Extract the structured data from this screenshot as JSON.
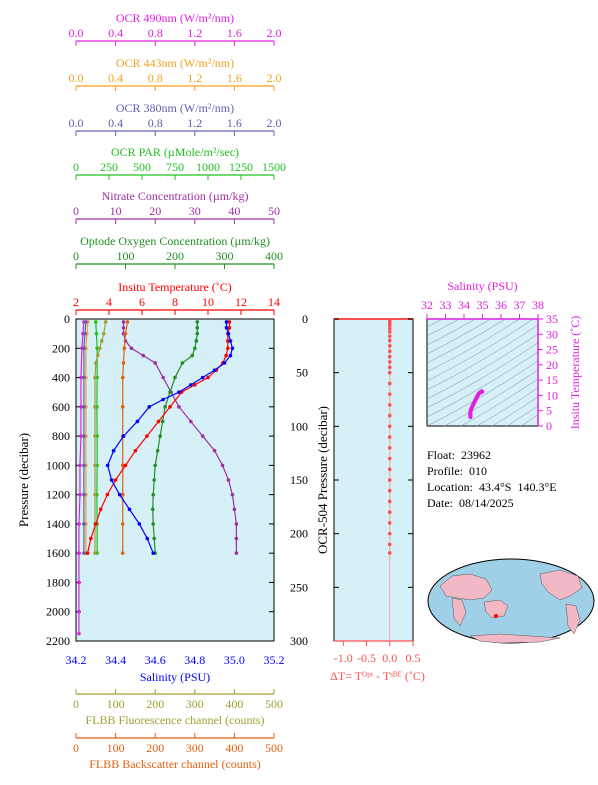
{
  "info": {
    "float": "Float:  23962",
    "profile": "Profile:  010",
    "location": "Location:  43.4°S  140.3°E",
    "date": "Date:  08/14/2025"
  },
  "colors": {
    "ocr490": "#e020e0",
    "ocr443": "#f0a020",
    "ocr380": "#6060b0",
    "par": "#20c020",
    "nitrate": "#a030a0",
    "oxygen": "#209020",
    "temperature": "#ff0000",
    "salinity": "#0000ff",
    "fluorescence": "#a0a030",
    "backscatter": "#e06010",
    "panel": "#d6f0f8",
    "deltat": "#ff5050"
  },
  "chart_data": [
    {
      "type": "line",
      "panel": "main-profile",
      "y_axis": {
        "label": "Pressure (decibar)",
        "range": [
          2200,
          0
        ],
        "ticks": [
          0,
          200,
          400,
          600,
          800,
          1000,
          1200,
          1400,
          1600,
          1800,
          2000,
          2200
        ]
      },
      "top_axes": [
        {
          "key": "ocr490",
          "label": "OCR 490nm (W/m²/nm)",
          "range": [
            0,
            2
          ],
          "ticks": [
            "0.0",
            "0.4",
            "0.8",
            "1.2",
            "1.6",
            "2.0"
          ]
        },
        {
          "key": "ocr443",
          "label": "OCR 443nm (W/m²/nm)",
          "range": [
            0,
            2
          ],
          "ticks": [
            "0.0",
            "0.4",
            "0.8",
            "1.2",
            "1.6",
            "2.0"
          ]
        },
        {
          "key": "ocr380",
          "label": "OCR 380nm (W/m²/nm)",
          "range": [
            0,
            2
          ],
          "ticks": [
            "0.0",
            "0.4",
            "0.8",
            "1.2",
            "1.6",
            "2.0"
          ]
        },
        {
          "key": "par",
          "label": "OCR PAR (µMole/m²/sec)",
          "range": [
            0,
            1500
          ],
          "ticks": [
            "0",
            "250",
            "500",
            "750",
            "1000",
            "1250",
            "1500"
          ]
        },
        {
          "key": "nitrate",
          "label": "Nitrate Concentration (µm/kg)",
          "range": [
            0,
            50
          ],
          "ticks": [
            "0",
            "10",
            "20",
            "30",
            "40",
            "50"
          ]
        },
        {
          "key": "oxygen",
          "label": "Optode Oxygen Concentration (µm/kg)",
          "range": [
            0,
            400
          ],
          "ticks": [
            "0",
            "100",
            "200",
            "300",
            "400"
          ]
        },
        {
          "key": "temperature",
          "label": "Insitu Temperature (˚C)",
          "range": [
            2,
            14
          ],
          "ticks": [
            "2",
            "4",
            "6",
            "8",
            "10",
            "12",
            "14"
          ]
        }
      ],
      "bottom_axes": [
        {
          "key": "salinity",
          "label": "Salinity (PSU)",
          "range": [
            34.2,
            35.2
          ],
          "ticks": [
            "34.2",
            "34.4",
            "34.6",
            "34.8",
            "35.0",
            "35.2"
          ]
        },
        {
          "key": "fluorescence",
          "label": "FLBB Fluorescence channel (counts)",
          "range": [
            0,
            500
          ],
          "ticks": [
            "0",
            "100",
            "200",
            "300",
            "400",
            "500"
          ]
        },
        {
          "key": "backscatter",
          "label": "FLBB Backscatter channel (counts)",
          "range": [
            0,
            500
          ],
          "ticks": [
            "0",
            "100",
            "200",
            "300",
            "400",
            "500"
          ]
        }
      ],
      "series": [
        {
          "name": "Insitu Temperature",
          "key": "temperature",
          "axis": "temperature",
          "points": [
            [
              11.3,
              20
            ],
            [
              11.3,
              60
            ],
            [
              11.2,
              100
            ],
            [
              11.2,
              150
            ],
            [
              11.2,
              200
            ],
            [
              11.1,
              250
            ],
            [
              10.9,
              300
            ],
            [
              10.5,
              350
            ],
            [
              10,
              400
            ],
            [
              9.2,
              450
            ],
            [
              8.4,
              500
            ],
            [
              7.7,
              600
            ],
            [
              7,
              700
            ],
            [
              6.3,
              800
            ],
            [
              5.6,
              900
            ],
            [
              5,
              1000
            ],
            [
              4.4,
              1100
            ],
            [
              3.9,
              1200
            ],
            [
              3.5,
              1300
            ],
            [
              3.2,
              1400
            ],
            [
              2.9,
              1500
            ],
            [
              2.7,
              1600
            ]
          ]
        },
        {
          "name": "Salinity",
          "key": "salinity",
          "axis": "salinity",
          "points": [
            [
              34.96,
              20
            ],
            [
              34.96,
              60
            ],
            [
              34.97,
              100
            ],
            [
              34.98,
              150
            ],
            [
              34.99,
              200
            ],
            [
              34.98,
              250
            ],
            [
              34.95,
              300
            ],
            [
              34.9,
              350
            ],
            [
              34.84,
              400
            ],
            [
              34.78,
              450
            ],
            [
              34.72,
              500
            ],
            [
              34.64,
              550
            ],
            [
              34.57,
              600
            ],
            [
              34.51,
              700
            ],
            [
              34.44,
              800
            ],
            [
              34.39,
              900
            ],
            [
              34.36,
              1000
            ],
            [
              34.38,
              1100
            ],
            [
              34.42,
              1200
            ],
            [
              34.47,
              1300
            ],
            [
              34.52,
              1400
            ],
            [
              34.56,
              1500
            ],
            [
              34.59,
              1600
            ]
          ]
        },
        {
          "name": "Optode Oxygen Concentration",
          "key": "oxygen",
          "axis": "oxygen",
          "points": [
            [
              245,
              20
            ],
            [
              245,
              60
            ],
            [
              245,
              100
            ],
            [
              243,
              150
            ],
            [
              240,
              200
            ],
            [
              235,
              250
            ],
            [
              215,
              300
            ],
            [
              200,
              400
            ],
            [
              190,
              500
            ],
            [
              180,
              600
            ],
            [
              175,
              700
            ],
            [
              170,
              800
            ],
            [
              165,
              900
            ],
            [
              160,
              1000
            ],
            [
              158,
              1100
            ],
            [
              156,
              1200
            ],
            [
              155,
              1300
            ],
            [
              156,
              1400
            ],
            [
              158,
              1500
            ],
            [
              160,
              1600
            ]
          ]
        },
        {
          "name": "Nitrate Concentration",
          "key": "nitrate",
          "axis": "nitrate",
          "points": [
            [
              12,
              20
            ],
            [
              12,
              60
            ],
            [
              12,
              100
            ],
            [
              12.5,
              150
            ],
            [
              14,
              200
            ],
            [
              17,
              250
            ],
            [
              20,
              300
            ],
            [
              22,
              400
            ],
            [
              24,
              500
            ],
            [
              26,
              600
            ],
            [
              29,
              700
            ],
            [
              32,
              800
            ],
            [
              35,
              900
            ],
            [
              37,
              1000
            ],
            [
              38.5,
              1100
            ],
            [
              39.5,
              1200
            ],
            [
              40,
              1300
            ],
            [
              40.5,
              1400
            ],
            [
              40.5,
              1500
            ],
            [
              40.5,
              1600
            ]
          ]
        },
        {
          "name": "OCR PAR",
          "key": "par",
          "axis": "par",
          "points": [
            [
              150,
              20
            ],
            [
              155,
              100
            ],
            [
              160,
              200
            ],
            [
              160,
              400
            ],
            [
              158,
              600
            ],
            [
              160,
              800
            ],
            [
              160,
              1000
            ],
            [
              158,
              1200
            ],
            [
              160,
              1400
            ],
            [
              160,
              1600
            ]
          ]
        },
        {
          "name": "OCR 380nm",
          "key": "ocr380",
          "axis": "ocr380",
          "points": [
            [
              0.1,
              20
            ],
            [
              0.09,
              100
            ],
            [
              0.08,
              200
            ],
            [
              0.08,
              400
            ],
            [
              0.08,
              600
            ],
            [
              0.08,
              800
            ],
            [
              0.08,
              1000
            ],
            [
              0.08,
              1200
            ],
            [
              0.08,
              1400
            ],
            [
              0.08,
              1600
            ]
          ]
        },
        {
          "name": "OCR 443nm",
          "key": "ocr443",
          "axis": "ocr443",
          "points": [
            [
              0.12,
              20
            ],
            [
              0.11,
              100
            ],
            [
              0.1,
              200
            ],
            [
              0.1,
              400
            ],
            [
              0.1,
              600
            ],
            [
              0.1,
              800
            ],
            [
              0.1,
              1000
            ],
            [
              0.1,
              1200
            ],
            [
              0.1,
              1400
            ],
            [
              0.1,
              1600
            ]
          ]
        },
        {
          "name": "OCR 490nm",
          "key": "ocr490",
          "axis": "ocr490",
          "points": [
            [
              0.08,
              20
            ],
            [
              0.07,
              100
            ],
            [
              0.06,
              200
            ],
            [
              0.05,
              400
            ],
            [
              0.05,
              600
            ],
            [
              0.05,
              800
            ],
            [
              0.04,
              1000
            ],
            [
              0.04,
              1200
            ],
            [
              0.03,
              1400
            ],
            [
              0.03,
              1600
            ],
            [
              0.03,
              1800
            ],
            [
              0.03,
              2000
            ],
            [
              0.03,
              2150
            ]
          ]
        },
        {
          "name": "FLBB Fluorescence channel",
          "key": "fluorescence",
          "axis": "fluorescence",
          "points": [
            [
              75,
              20
            ],
            [
              70,
              100
            ],
            [
              65,
              150
            ],
            [
              60,
              200
            ],
            [
              55,
              250
            ],
            [
              50,
              300
            ],
            [
              48,
              400
            ],
            [
              48,
              600
            ],
            [
              48,
              800
            ],
            [
              48,
              1000
            ],
            [
              48,
              1200
            ],
            [
              48,
              1400
            ],
            [
              48,
              1600
            ]
          ]
        },
        {
          "name": "FLBB Backscatter channel",
          "key": "backscatter",
          "axis": "backscatter",
          "points": [
            [
              130,
              20
            ],
            [
              125,
              100
            ],
            [
              122,
              200
            ],
            [
              120,
              300
            ],
            [
              118,
              400
            ],
            [
              118,
              600
            ],
            [
              118,
              800
            ],
            [
              118,
              1000
            ],
            [
              118,
              1200
            ],
            [
              118,
              1400
            ],
            [
              118,
              1600
            ]
          ]
        }
      ]
    },
    {
      "type": "scatter",
      "panel": "delta-t",
      "y_axis": {
        "label": "OCR-504 Pressure (decibar)",
        "range": [
          300,
          0
        ],
        "ticks": [
          "0",
          "50",
          "100",
          "150",
          "200",
          "250",
          "300"
        ]
      },
      "x_axis": {
        "label": "ΔT= Tᴼᵖᵗ - Tˢᴮᴱ (˚C)",
        "range": [
          -1.2,
          0.5
        ],
        "ticks": [
          "-1.0",
          "-0.5",
          "0.0",
          "0.5"
        ]
      },
      "series": [
        {
          "name": "ΔT",
          "points": [
            [
              0,
              2
            ],
            [
              0,
              4
            ],
            [
              0,
              6
            ],
            [
              0,
              9
            ],
            [
              0,
              12
            ],
            [
              0,
              16
            ],
            [
              0,
              20
            ],
            [
              0,
              25
            ],
            [
              0,
              30
            ],
            [
              0,
              35
            ],
            [
              0,
              40
            ],
            [
              0,
              45
            ],
            [
              0,
              50
            ],
            [
              0,
              60
            ],
            [
              0,
              70
            ],
            [
              0,
              80
            ],
            [
              0,
              90
            ],
            [
              0,
              100
            ],
            [
              0,
              110
            ],
            [
              0,
              120
            ],
            [
              0,
              130
            ],
            [
              0,
              140
            ],
            [
              0,
              150
            ],
            [
              0,
              160
            ],
            [
              0,
              170
            ],
            [
              0,
              180
            ],
            [
              0,
              190
            ],
            [
              0,
              200
            ],
            [
              0,
              210
            ],
            [
              0,
              218
            ]
          ]
        }
      ]
    },
    {
      "type": "scatter",
      "panel": "ts-diagram",
      "x_axis": {
        "label": "Salinity (PSU)",
        "range": [
          32,
          38
        ],
        "ticks": [
          "32",
          "33",
          "34",
          "35",
          "36",
          "37",
          "38"
        ]
      },
      "y_axis": {
        "label": "Insitu Temperature (˚C)",
        "range": [
          0,
          35
        ],
        "ticks": [
          "0",
          "5",
          "10",
          "15",
          "20",
          "25",
          "30",
          "35"
        ]
      },
      "series": [
        {
          "name": "T-S",
          "points": [
            [
              34.35,
              3
            ],
            [
              34.34,
              4
            ],
            [
              34.36,
              5
            ],
            [
              34.42,
              6
            ],
            [
              34.5,
              7
            ],
            [
              34.58,
              8
            ],
            [
              34.66,
              9
            ],
            [
              34.74,
              10
            ],
            [
              34.82,
              10.7
            ],
            [
              34.9,
              11.1
            ],
            [
              34.96,
              11.3
            ],
            [
              34.98,
              11.2
            ]
          ]
        }
      ]
    }
  ]
}
